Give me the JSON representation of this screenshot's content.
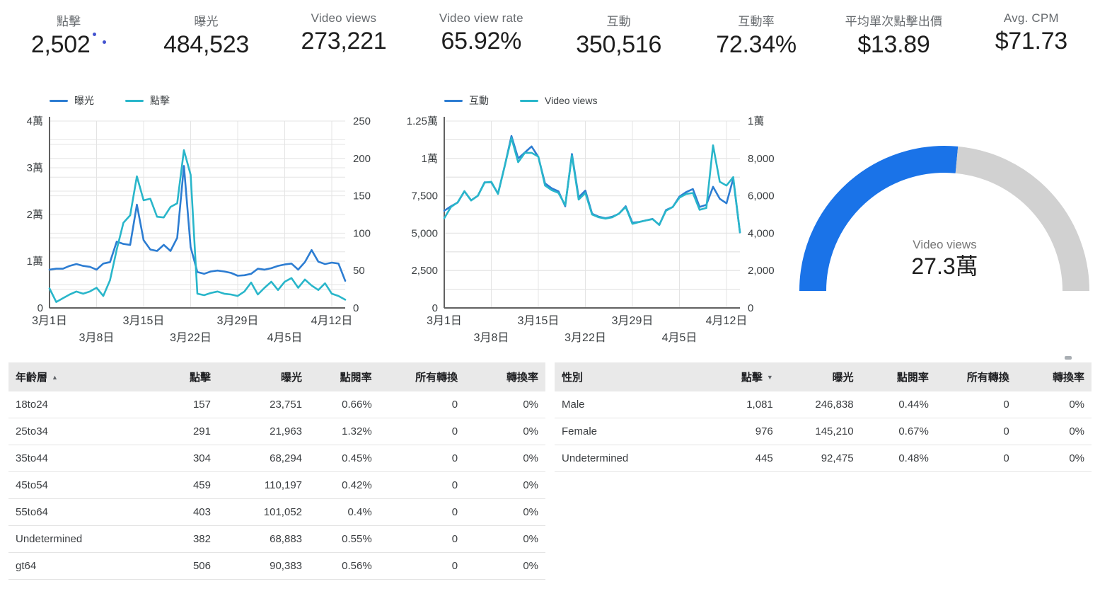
{
  "scorecards": [
    {
      "label": "點擊",
      "value": "2,502",
      "indicator_dots": true
    },
    {
      "label": "曝光",
      "value": "484,523"
    },
    {
      "label": "Video views",
      "value": "273,221"
    },
    {
      "label": "Video view rate",
      "value": "65.92%"
    },
    {
      "label": "互動",
      "value": "350,516"
    },
    {
      "label": "互動率",
      "value": "72.34%"
    },
    {
      "label": "平均單次點擊出價",
      "value": "$13.89"
    },
    {
      "label": "Avg. CPM",
      "value": "$71.73"
    }
  ],
  "colors": {
    "line_blue": "#2d7dd2",
    "line_teal": "#29b6ca",
    "gauge_blue": "#1a73e8",
    "gauge_track": "#d1d1d1",
    "indicator_dot": "#4353cf",
    "axis_line": "#616161",
    "grid_line": "#e4e4e4"
  },
  "chart_data": [
    {
      "type": "line",
      "legend_position": "top",
      "grid": true,
      "x": [
        "3月1日",
        "3月2日",
        "3月3日",
        "3月4日",
        "3月5日",
        "3月6日",
        "3月7日",
        "3月8日",
        "3月9日",
        "3月10日",
        "3月11日",
        "3月12日",
        "3月13日",
        "3月14日",
        "3月15日",
        "3月16日",
        "3月17日",
        "3月18日",
        "3月19日",
        "3月20日",
        "3月21日",
        "3月22日",
        "3月23日",
        "3月24日",
        "3月25日",
        "3月26日",
        "3月27日",
        "3月28日",
        "3月29日",
        "3月30日",
        "3月31日",
        "4月1日",
        "4月2日",
        "4月3日",
        "4月4日",
        "4月5日",
        "4月6日",
        "4月7日",
        "4月8日",
        "4月9日",
        "4月10日",
        "4月11日",
        "4月12日",
        "4月13日",
        "4月14日"
      ],
      "x_tick_labels": [
        "3月1日",
        "3月8日",
        "3月15日",
        "3月22日",
        "3月29日",
        "4月5日",
        "4月12日"
      ],
      "left_axis": {
        "min": 0,
        "max": 40000,
        "tick_labels": [
          "0",
          "1萬",
          "2萬",
          "3萬",
          "4萬"
        ]
      },
      "right_axis": {
        "min": 0,
        "max": 250,
        "tick_labels": [
          "0",
          "50",
          "100",
          "150",
          "200",
          "250"
        ]
      },
      "series": [
        {
          "name": "曝光",
          "axis": "left",
          "color": "#2d7dd2",
          "values": [
            8200,
            8400,
            8400,
            9000,
            9400,
            9000,
            8800,
            8200,
            9500,
            9800,
            14200,
            13700,
            13500,
            22100,
            14500,
            12500,
            12200,
            13500,
            12200,
            15000,
            30400,
            13000,
            7700,
            7300,
            7800,
            8000,
            7800,
            7500,
            6900,
            7000,
            7300,
            8400,
            8200,
            8500,
            9000,
            9300,
            9500,
            8200,
            9800,
            12400,
            9900,
            9400,
            9700,
            9500,
            5800
          ]
        },
        {
          "name": "點擊",
          "axis": "right",
          "color": "#29b6ca",
          "values": [
            26,
            8,
            13,
            18,
            22,
            19,
            22,
            27,
            16,
            37,
            78,
            114,
            124,
            176,
            144,
            146,
            122,
            121,
            135,
            140,
            211,
            178,
            19,
            17,
            20,
            22,
            19,
            18,
            16,
            22,
            34,
            18,
            27,
            35,
            24,
            35,
            40,
            27,
            38,
            30,
            24,
            33,
            19,
            16,
            11
          ]
        }
      ]
    },
    {
      "type": "line",
      "legend_position": "top",
      "grid": true,
      "x": [
        "3月1日",
        "3月2日",
        "3月3日",
        "3月4日",
        "3月5日",
        "3月6日",
        "3月7日",
        "3月8日",
        "3月9日",
        "3月10日",
        "3月11日",
        "3月12日",
        "3月13日",
        "3月14日",
        "3月15日",
        "3月16日",
        "3月17日",
        "3月18日",
        "3月19日",
        "3月20日",
        "3月21日",
        "3月22日",
        "3月23日",
        "3月24日",
        "3月25日",
        "3月26日",
        "3月27日",
        "3月28日",
        "3月29日",
        "3月30日",
        "3月31日",
        "4月1日",
        "4月2日",
        "4月3日",
        "4月4日",
        "4月5日",
        "4月6日",
        "4月7日",
        "4月8日",
        "4月9日",
        "4月10日",
        "4月11日",
        "4月12日",
        "4月13日",
        "4月14日"
      ],
      "x_tick_labels": [
        "3月1日",
        "3月8日",
        "3月15日",
        "3月22日",
        "3月29日",
        "4月5日",
        "4月12日"
      ],
      "left_axis": {
        "min": 0,
        "max": 12500,
        "tick_labels": [
          "0",
          "2,500",
          "5,000",
          "7,500",
          "1萬",
          "1.25萬"
        ]
      },
      "right_axis": {
        "min": 0,
        "max": 10000,
        "tick_labels": [
          "0",
          "2,000",
          "4,000",
          "6,000",
          "8,000",
          "1萬"
        ]
      },
      "series": [
        {
          "name": "互動",
          "axis": "left",
          "color": "#2d7dd2",
          "values": [
            6500,
            6800,
            7050,
            7800,
            7200,
            7500,
            8400,
            8400,
            7650,
            9500,
            11500,
            10000,
            10400,
            10800,
            10100,
            8330,
            8000,
            7800,
            6800,
            10300,
            7400,
            7850,
            6300,
            6100,
            6000,
            6100,
            6300,
            6800,
            5700,
            5750,
            5850,
            5950,
            5550,
            6550,
            6750,
            7450,
            7750,
            7950,
            6750,
            6900,
            8100,
            7300,
            7000,
            8650,
            5050
          ]
        },
        {
          "name": "Video views",
          "axis": "right",
          "color": "#29b6ca",
          "values": [
            4800,
            5400,
            5650,
            6250,
            5750,
            6000,
            6700,
            6750,
            6100,
            7600,
            9100,
            7800,
            8300,
            8300,
            8100,
            6550,
            6300,
            6150,
            5500,
            8150,
            5800,
            6150,
            5000,
            4850,
            4780,
            4850,
            5050,
            5400,
            4500,
            4600,
            4680,
            4750,
            4450,
            5200,
            5400,
            5900,
            6100,
            6150,
            5250,
            5350,
            8700,
            6750,
            6550,
            7000,
            4050
          ]
        }
      ]
    },
    {
      "type": "gauge",
      "title": "Video views",
      "display_value": "27.3萬",
      "value": 273221,
      "fraction": 0.53,
      "color": "#1a73e8",
      "track_color": "#d1d1d1"
    }
  ],
  "tables": [
    {
      "headers": [
        "年齡層",
        "點擊",
        "曝光",
        "點閱率",
        "所有轉換",
        "轉換率"
      ],
      "sort": {
        "column": 0,
        "direction": "asc"
      },
      "rows": [
        [
          "18to24",
          "157",
          "23,751",
          "0.66%",
          "0",
          "0%"
        ],
        [
          "25to34",
          "291",
          "21,963",
          "1.32%",
          "0",
          "0%"
        ],
        [
          "35to44",
          "304",
          "68,294",
          "0.45%",
          "0",
          "0%"
        ],
        [
          "45to54",
          "459",
          "110,197",
          "0.42%",
          "0",
          "0%"
        ],
        [
          "55to64",
          "403",
          "101,052",
          "0.4%",
          "0",
          "0%"
        ],
        [
          "Undetermined",
          "382",
          "68,883",
          "0.55%",
          "0",
          "0%"
        ],
        [
          "gt64",
          "506",
          "90,383",
          "0.56%",
          "0",
          "0%"
        ]
      ]
    },
    {
      "headers": [
        "性別",
        "點擊",
        "曝光",
        "點閱率",
        "所有轉換",
        "轉換率"
      ],
      "sort": {
        "column": 1,
        "direction": "desc"
      },
      "rows": [
        [
          "Male",
          "1,081",
          "246,838",
          "0.44%",
          "0",
          "0%"
        ],
        [
          "Female",
          "976",
          "145,210",
          "0.67%",
          "0",
          "0%"
        ],
        [
          "Undetermined",
          "445",
          "92,475",
          "0.48%",
          "0",
          "0%"
        ]
      ]
    }
  ]
}
